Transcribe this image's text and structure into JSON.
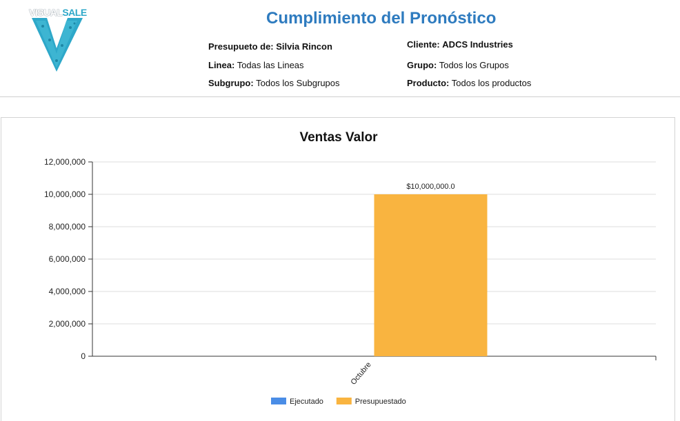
{
  "logo": {
    "text_part1": "VISUAL",
    "text_part2": "SALE"
  },
  "report": {
    "title": "Cumplimiento del Pronóstico",
    "presupuesto_label": "Presupueto de:",
    "presupuesto_value": "Silvia Rincon",
    "cliente_label": "Cliente:",
    "cliente_value": "ADCS Industries",
    "linea_label": "Linea:",
    "linea_value": "Todas las Lineas",
    "grupo_label": "Grupo:",
    "grupo_value": "Todos los Grupos",
    "subgrupo_label": "Subgrupo:",
    "subgrupo_value": "Todos los Subgrupos",
    "producto_label": "Producto:",
    "producto_value": "Todos los productos"
  },
  "colors": {
    "title": "#2e7bbf",
    "ejecutado": "#4a8de6",
    "presupuestado": "#f9b440",
    "logo": "#2ea8c9"
  },
  "chart_data": {
    "type": "bar",
    "title": "Ventas Valor",
    "categories": [
      "Octubre"
    ],
    "series": [
      {
        "name": "Ejecutado",
        "values": [
          0
        ],
        "color": "#4a8de6"
      },
      {
        "name": "Presupuestado",
        "values": [
          10000000
        ],
        "color": "#f9b440",
        "labels": [
          "$10,000,000.0"
        ]
      }
    ],
    "ylim": [
      0,
      12000000
    ],
    "yticks": [
      0,
      2000000,
      4000000,
      6000000,
      8000000,
      10000000,
      12000000
    ],
    "ytick_labels": [
      "0",
      "2,000,000",
      "4,000,000",
      "6,000,000",
      "8,000,000",
      "10,000,000",
      "12,000,000"
    ],
    "grid": true,
    "legend_position": "bottom"
  }
}
